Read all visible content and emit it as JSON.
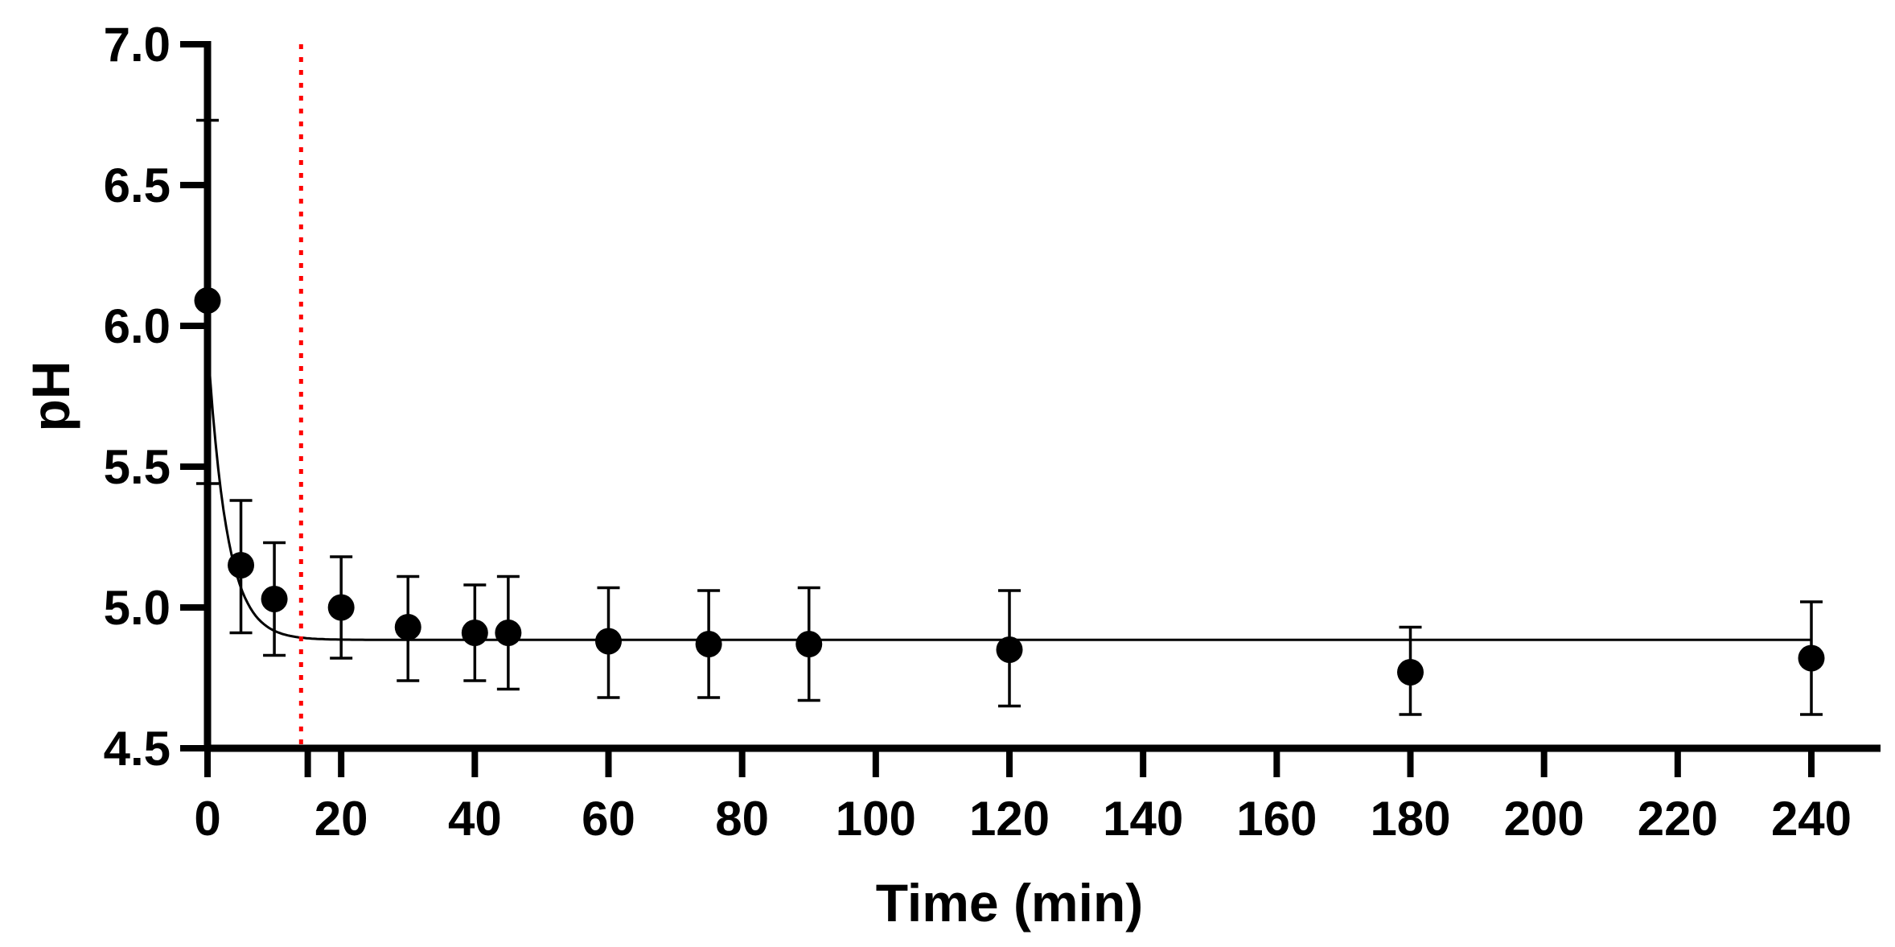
{
  "chart_data": {
    "type": "scatter",
    "title": "",
    "xlabel": "Time (min)",
    "ylabel": "pH",
    "xlim": [
      0,
      250
    ],
    "ylim": [
      4.5,
      7.0
    ],
    "xticks": [
      "0",
      "20",
      "40",
      "60",
      "80",
      "100",
      "120",
      "140",
      "160",
      "180",
      "200",
      "220",
      "240"
    ],
    "yticks": [
      "4.5",
      "5.0",
      "5.5",
      "6.0",
      "6.5",
      "7.0"
    ],
    "xtick_values": [
      0,
      20,
      40,
      60,
      80,
      100,
      120,
      140,
      160,
      180,
      200,
      220,
      240
    ],
    "ytick_values": [
      4.5,
      5.0,
      5.5,
      6.0,
      6.5,
      7.0
    ],
    "minor_xtick_values": [
      15
    ],
    "grid": false,
    "legend": "none",
    "series": [
      {
        "marker_color": "#000000",
        "points": [
          {
            "x": 0,
            "y": 6.09,
            "err_low": 5.44,
            "err_high": 6.73
          },
          {
            "x": 5,
            "y": 5.15,
            "err_low": 4.91,
            "err_high": 5.38
          },
          {
            "x": 10,
            "y": 5.03,
            "err_low": 4.83,
            "err_high": 5.23
          },
          {
            "x": 20,
            "y": 5.0,
            "err_low": 4.82,
            "err_high": 5.18
          },
          {
            "x": 30,
            "y": 4.93,
            "err_low": 4.74,
            "err_high": 5.11
          },
          {
            "x": 40,
            "y": 4.91,
            "err_low": 4.74,
            "err_high": 5.08
          },
          {
            "x": 45,
            "y": 4.91,
            "err_low": 4.71,
            "err_high": 5.11
          },
          {
            "x": 60,
            "y": 4.88,
            "err_low": 4.68,
            "err_high": 5.07
          },
          {
            "x": 75,
            "y": 4.87,
            "err_low": 4.68,
            "err_high": 5.06
          },
          {
            "x": 90,
            "y": 4.87,
            "err_low": 4.67,
            "err_high": 5.07
          },
          {
            "x": 120,
            "y": 4.85,
            "err_low": 4.65,
            "err_high": 5.06
          },
          {
            "x": 180,
            "y": 4.77,
            "err_low": 4.62,
            "err_high": 4.93
          },
          {
            "x": 240,
            "y": 4.82,
            "err_low": 4.62,
            "err_high": 5.02
          }
        ]
      }
    ],
    "fit_curve": {
      "model": "exponential_decay",
      "y0": 5.95,
      "plateau": 4.885,
      "k": 0.35,
      "color": "#000000"
    },
    "reference_line": {
      "x": 14,
      "style": "dotted",
      "color": "#ff0000"
    }
  }
}
